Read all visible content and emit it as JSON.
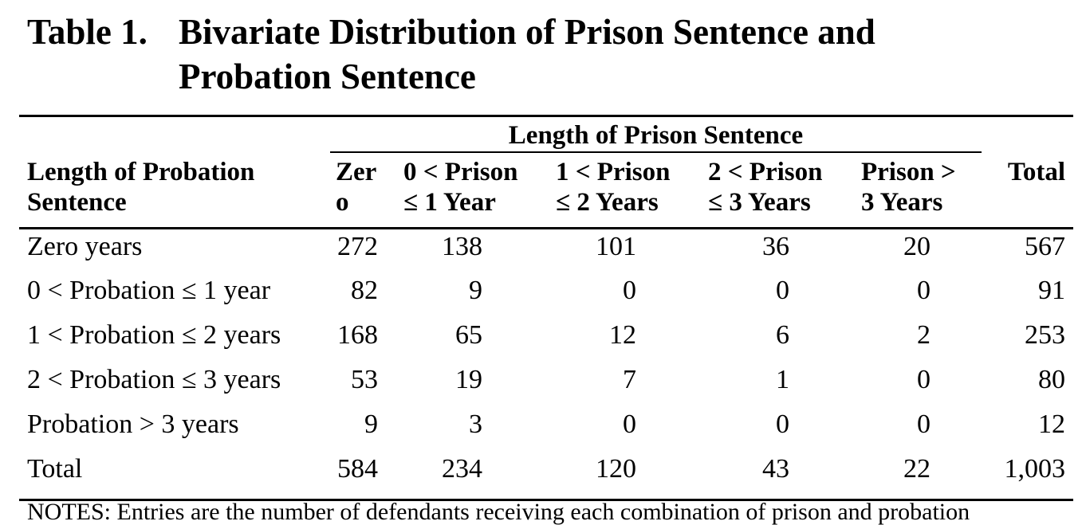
{
  "title": {
    "label": "Table 1.",
    "line1": "Bivariate Distribution of Prison Sentence and",
    "line2": "Probation Sentence"
  },
  "header": {
    "spanner": "Length of Prison Sentence",
    "row_label_1": "Length of Probation",
    "row_label_2": "Sentence",
    "columns": [
      {
        "l1": "Zer",
        "l2": "o"
      },
      {
        "l1": "0 < Prison",
        "l2": "≤ 1 Year"
      },
      {
        "l1": "1 < Prison",
        "l2": "≤ 2 Years"
      },
      {
        "l1": "2 < Prison",
        "l2": "≤ 3 Years"
      },
      {
        "l1": "Prison >",
        "l2": "3 Years"
      }
    ],
    "total": "Total"
  },
  "rows": [
    {
      "label": "Zero years",
      "values": [
        "272",
        "138",
        "101",
        "36",
        "20",
        "567"
      ]
    },
    {
      "label": "0 < Probation ≤ 1 year",
      "values": [
        "82",
        "9",
        "0",
        "0",
        "0",
        "91"
      ]
    },
    {
      "label": "1 < Probation ≤ 2 years",
      "values": [
        "168",
        "65",
        "12",
        "6",
        "2",
        "253"
      ]
    },
    {
      "label": "2 < Probation ≤ 3 years",
      "values": [
        "53",
        "19",
        "7",
        "1",
        "0",
        "80"
      ]
    },
    {
      "label": "Probation > 3 years",
      "values": [
        "9",
        "3",
        "0",
        "0",
        "0",
        "12"
      ]
    },
    {
      "label": "Total",
      "values": [
        "584",
        "234",
        "120",
        "43",
        "22",
        "1,003"
      ]
    }
  ],
  "notes": "NOTES: Entries are the number of defendants receiving each combination of prison and probation"
}
